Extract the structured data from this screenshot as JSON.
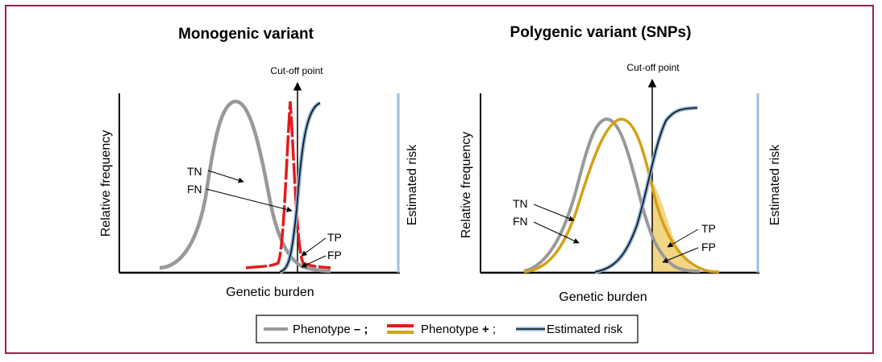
{
  "figure": {
    "left_panel": {
      "title": "Monogenic variant",
      "cutoff_label": "Cut-off point",
      "ylabel_left": "Relative frequency",
      "ylabel_right": "Estimated risk",
      "xlabel": "Genetic burden",
      "labels": {
        "tn": "TN",
        "fn": "FN",
        "tp": "TP",
        "fp": "FP"
      }
    },
    "right_panel": {
      "title": "Polygenic variant (SNPs)",
      "cutoff_label": "Cut-off point",
      "ylabel_left": "Relative frequency",
      "ylabel_right": "Estimated risk",
      "xlabel": "Genetic burden",
      "labels": {
        "tn": "TN",
        "fn": "FN",
        "tp": "TP",
        "fp": "FP"
      }
    },
    "legend": {
      "phenotype_neg": "Phenotype ",
      "neg_symbol": "– ;",
      "phenotype_pos": "Phenotype ",
      "pos_symbol": "+",
      "pos_sep": " ;",
      "estimated_risk": "Estimated risk"
    },
    "colors": {
      "frame": "#9b2344",
      "phenotype_negative": "#999999",
      "phenotype_positive_monogenic": "#e41a1c",
      "phenotype_positive_polygenic": "#d4a017",
      "estimated_risk": "#8db4d9",
      "overlap_fill": "#f0cf70"
    }
  }
}
